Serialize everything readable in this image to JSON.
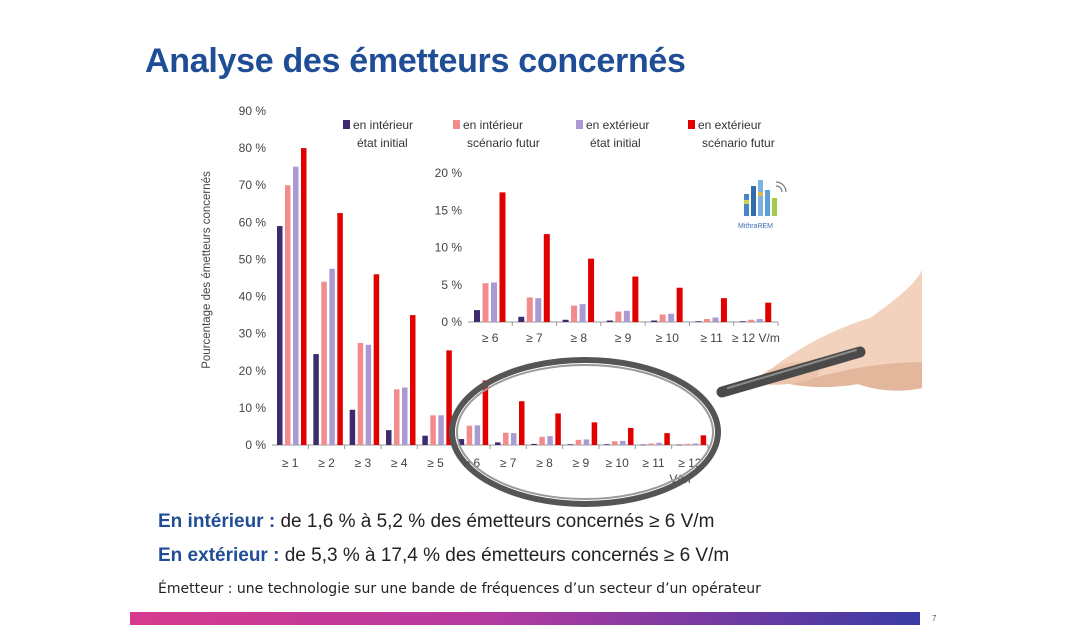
{
  "page": {
    "title": "Analyse des émetteurs concernés",
    "page_number": "7"
  },
  "summary": {
    "line1_lead": "En intérieur :",
    "line1_text": "de 1,6 % à 5,2 % des émetteurs concernés ≥ 6 V/m",
    "line2_lead": "En extérieur :",
    "line2_text": "de 5,3 % à 17,4 % des émetteurs concernés ≥ 6 V/m",
    "note": "Émetteur : une technologie sur une bande de fréquences d’un secteur d’un opérateur"
  },
  "logo": {
    "label": "MithraREM",
    "icon": "building-antenna-icon"
  },
  "magnifier": {
    "icon": "magnifying-glass-in-hand-icon"
  },
  "chart_data": [
    {
      "type": "bar",
      "ylabel": "Pourcentage des émetteurs concernés",
      "ylim": [
        0,
        90
      ],
      "yticks": [
        "0 %",
        "10 %",
        "20 %",
        "30 %",
        "40 %",
        "50 %",
        "60 %",
        "70 %",
        "80 %",
        "90 %"
      ],
      "categories": [
        "≥ 1",
        "≥ 2",
        "≥ 3",
        "≥ 4",
        "≥ 5",
        "≥ 6",
        "≥ 7",
        "≥ 8",
        "≥ 9",
        "≥ 10",
        "≥ 11",
        "≥ 12"
      ],
      "x_unit": "V/m",
      "legend_position": "top",
      "series": [
        {
          "name": "en intérieur\nétat initial",
          "color": "#3d2b6e",
          "values": [
            59,
            24.5,
            9.5,
            4,
            2.5,
            1.6,
            0.7,
            0.3,
            0.2,
            0.2,
            0.1,
            0.1
          ]
        },
        {
          "name": "en intérieur\nscénario futur",
          "color": "#f28b8b",
          "values": [
            70,
            44,
            27.5,
            15,
            8,
            5.2,
            3.3,
            2.2,
            1.4,
            1.0,
            0.4,
            0.3
          ]
        },
        {
          "name": "en extérieur\nétat initial",
          "color": "#a99ad2",
          "values": [
            75,
            47.5,
            27,
            15.5,
            8,
            5.3,
            3.2,
            2.4,
            1.5,
            1.1,
            0.6,
            0.4
          ]
        },
        {
          "name": "en extérieur\nscénario futur",
          "color": "#e00000",
          "values": [
            80,
            62.5,
            46,
            35,
            25.5,
            17.4,
            11.8,
            8.5,
            6.1,
            4.6,
            3.2,
            2.6
          ]
        }
      ]
    },
    {
      "type": "bar",
      "inset": true,
      "ylim": [
        0,
        20
      ],
      "yticks": [
        "0 %",
        "5 %",
        "10 %",
        "15 %",
        "20 %"
      ],
      "categories": [
        "≥ 6",
        "≥ 7",
        "≥ 8",
        "≥ 9",
        "≥ 10",
        "≥ 11",
        "≥ 12 V/m"
      ],
      "series": [
        {
          "name": "en intérieur\nétat initial",
          "color": "#3d2b6e",
          "values": [
            1.6,
            0.7,
            0.3,
            0.2,
            0.2,
            0.1,
            0.1
          ]
        },
        {
          "name": "en intérieur\nscénario futur",
          "color": "#f28b8b",
          "values": [
            5.2,
            3.3,
            2.2,
            1.4,
            1.0,
            0.4,
            0.3
          ]
        },
        {
          "name": "en extérieur\nétat initial",
          "color": "#a99ad2",
          "values": [
            5.3,
            3.2,
            2.4,
            1.5,
            1.1,
            0.6,
            0.4
          ]
        },
        {
          "name": "en extérieur\nscénario futur",
          "color": "#e00000",
          "values": [
            17.4,
            11.8,
            8.5,
            6.1,
            4.6,
            3.2,
            2.6
          ]
        }
      ]
    }
  ]
}
